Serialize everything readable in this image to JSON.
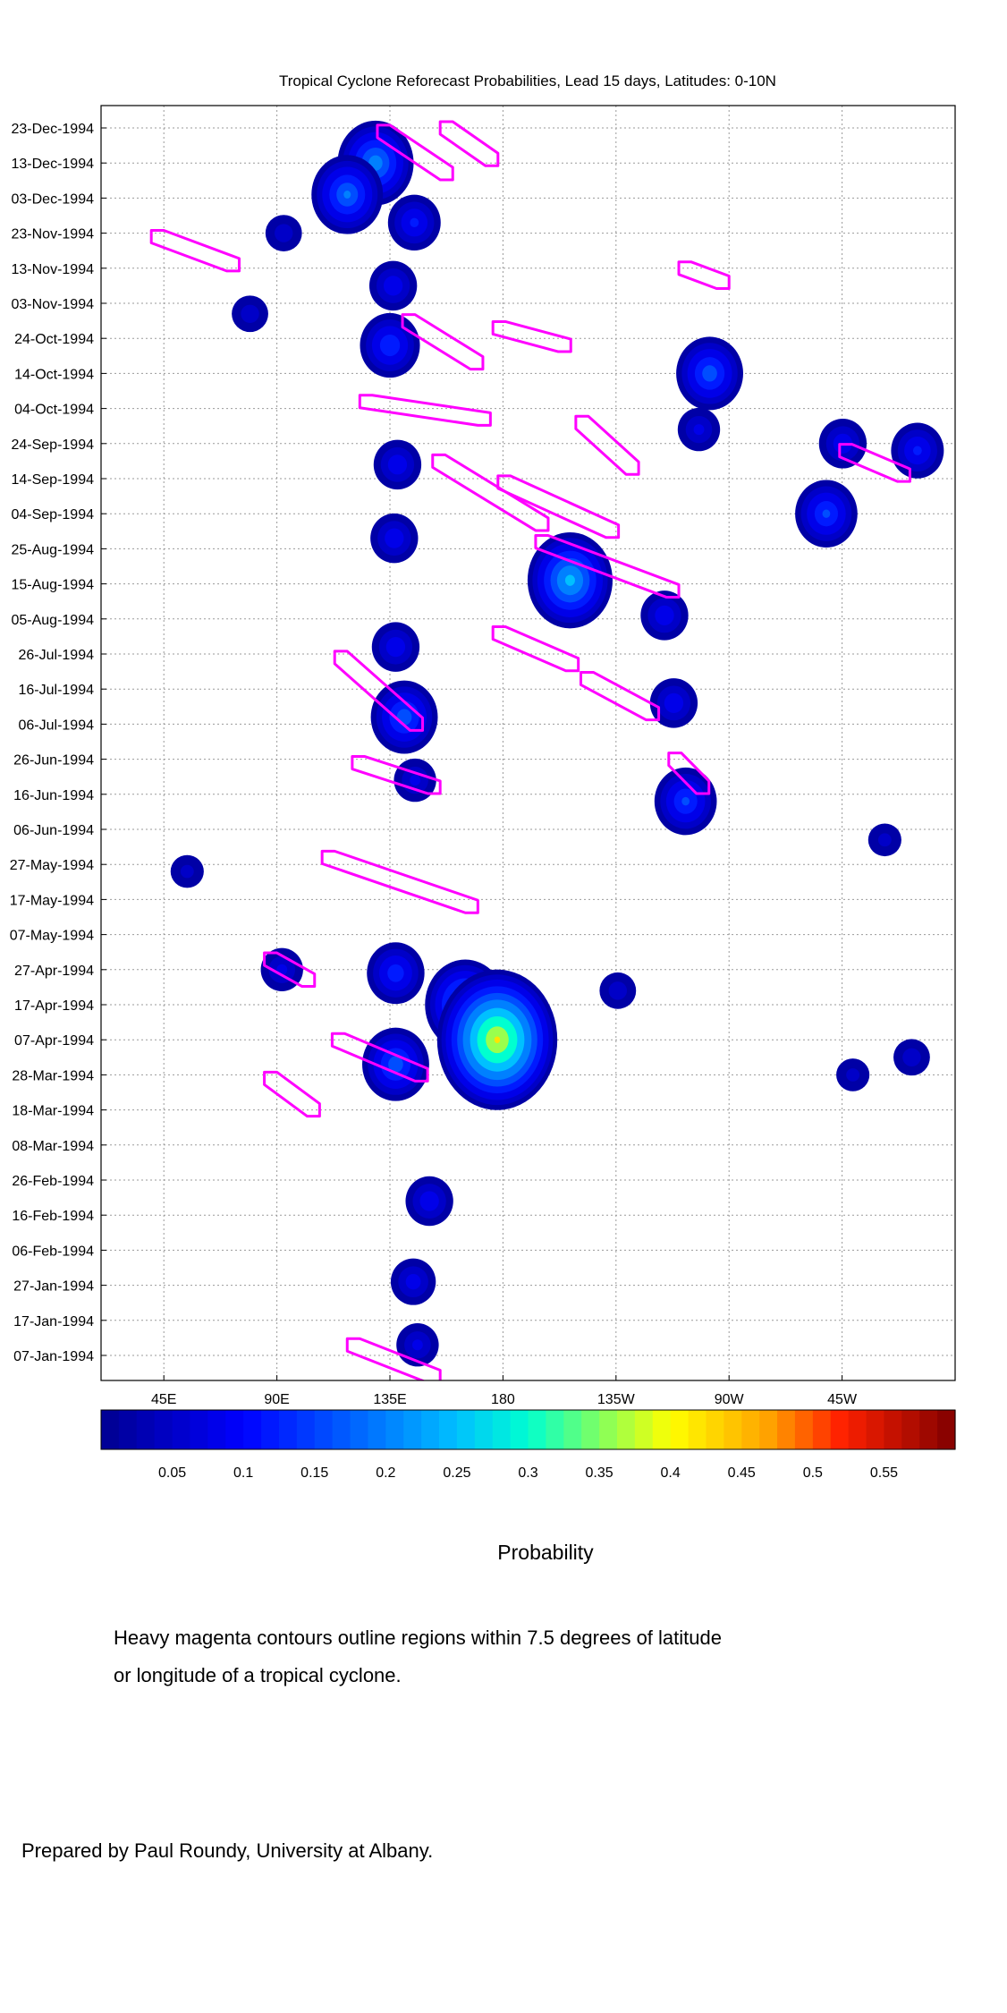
{
  "chart_data": {
    "type": "heatmap",
    "title": "Tropical Cyclone Reforecast Probabilities, Lead 15 days, Latitudes: 0-10N",
    "x_tick_labels": [
      "45E",
      "90E",
      "135E",
      "180",
      "135W",
      "90W",
      "45W"
    ],
    "y_tick_labels": [
      "23-Dec-1994",
      "13-Dec-1994",
      "03-Dec-1994",
      "23-Nov-1994",
      "13-Nov-1994",
      "03-Nov-1994",
      "24-Oct-1994",
      "14-Oct-1994",
      "04-Oct-1994",
      "24-Sep-1994",
      "14-Sep-1994",
      "04-Sep-1994",
      "25-Aug-1994",
      "15-Aug-1994",
      "05-Aug-1994",
      "26-Jul-1994",
      "16-Jul-1994",
      "06-Jul-1994",
      "26-Jun-1994",
      "16-Jun-1994",
      "06-Jun-1994",
      "27-May-1994",
      "17-May-1994",
      "07-May-1994",
      "27-Apr-1994",
      "17-Apr-1994",
      "07-Apr-1994",
      "28-Mar-1994",
      "18-Mar-1994",
      "08-Mar-1994",
      "26-Feb-1994",
      "16-Feb-1994",
      "06-Feb-1994",
      "27-Jan-1994",
      "17-Jan-1994",
      "07-Jan-1994"
    ],
    "colorbar_ticks": [
      "0.05",
      "0.1",
      "0.15",
      "0.2",
      "0.25",
      "0.3",
      "0.35",
      "0.4",
      "0.45",
      "0.5",
      "0.55"
    ],
    "colorbar_range": [
      0,
      0.6
    ],
    "grid": true,
    "contour_color": "#ff00ff",
    "probability_blobs": [
      {
        "lon": 130,
        "date": "1994-12-13",
        "peak": 0.22
      },
      {
        "lon": 118,
        "date": "1994-12-04",
        "peak": 0.2
      },
      {
        "lon": 144,
        "date": "1994-11-26",
        "peak": 0.12
      },
      {
        "lon": 137,
        "date": "1994-11-08",
        "peak": 0.1
      },
      {
        "lon": 135,
        "date": "1994-10-22",
        "peak": 0.15
      },
      {
        "lon": 92,
        "date": "1994-11-23",
        "peak": 0.06
      },
      {
        "lon": 80,
        "date": "1994-10-31",
        "peak": 0.06
      },
      {
        "lon": 138,
        "date": "1994-09-18",
        "peak": 0.1
      },
      {
        "lon": 136,
        "date": "1994-08-28",
        "peak": 0.1
      },
      {
        "lon": 263,
        "date": "1994-10-14",
        "peak": 0.18
      },
      {
        "lon": 258,
        "date": "1994-09-28",
        "peak": 0.08
      },
      {
        "lon": 308,
        "date": "1994-09-04",
        "peak": 0.16
      },
      {
        "lon": 316,
        "date": "1994-09-24",
        "peak": 0.1
      },
      {
        "lon": 345,
        "date": "1994-09-22",
        "peak": 0.12
      },
      {
        "lon": 206,
        "date": "1994-08-16",
        "peak": 0.26
      },
      {
        "lon": 245,
        "date": "1994-08-06",
        "peak": 0.1
      },
      {
        "lon": 248,
        "date": "1994-07-12",
        "peak": 0.1
      },
      {
        "lon": 140,
        "date": "1994-07-08",
        "peak": 0.18
      },
      {
        "lon": 138,
        "date": "1994-07-28",
        "peak": 0.1
      },
      {
        "lon": 145,
        "date": "1994-06-20",
        "peak": 0.08
      },
      {
        "lon": 252,
        "date": "1994-06-14",
        "peak": 0.16
      },
      {
        "lon": 138,
        "date": "1994-04-26",
        "peak": 0.14
      },
      {
        "lon": 165,
        "date": "1994-04-17",
        "peak": 0.24
      },
      {
        "lon": 177,
        "date": "1994-04-07",
        "peak": 0.42
      },
      {
        "lon": 138,
        "date": "1994-03-31",
        "peak": 0.18
      },
      {
        "lon": 92,
        "date": "1994-04-27",
        "peak": 0.08
      },
      {
        "lon": 150,
        "date": "1994-02-20",
        "peak": 0.1
      },
      {
        "lon": 145,
        "date": "1994-01-28",
        "peak": 0.09
      },
      {
        "lon": 146,
        "date": "1994-01-10",
        "peak": 0.08
      },
      {
        "lon": 342,
        "date": "1994-04-02",
        "peak": 0.06
      },
      {
        "lon": 320,
        "date": "1994-03-28",
        "peak": 0.05
      },
      {
        "lon": 332,
        "date": "1994-06-03",
        "peak": 0.05
      },
      {
        "lon": 225,
        "date": "1994-04-21",
        "peak": 0.06
      },
      {
        "lon": 55,
        "date": "1994-05-25",
        "peak": 0.05
      }
    ],
    "tc_contours": [
      {
        "lon": [
          130,
          160
        ],
        "dates": [
          "1994-12-22",
          "1994-12-10"
        ]
      },
      {
        "lon": [
          155,
          178
        ],
        "dates": [
          "1994-12-23",
          "1994-12-14"
        ]
      },
      {
        "lon": [
          40,
          75
        ],
        "dates": [
          "1994-11-22",
          "1994-11-14"
        ]
      },
      {
        "lon": [
          250,
          270
        ],
        "dates": [
          "1994-11-13",
          "1994-11-09"
        ]
      },
      {
        "lon": [
          140,
          172
        ],
        "dates": [
          "1994-10-29",
          "1994-10-17"
        ]
      },
      {
        "lon": [
          176,
          207
        ],
        "dates": [
          "1994-10-27",
          "1994-10-22"
        ]
      },
      {
        "lon": [
          123,
          175
        ],
        "dates": [
          "1994-10-06",
          "1994-10-01"
        ]
      },
      {
        "lon": [
          209,
          234
        ],
        "dates": [
          "1994-09-30",
          "1994-09-17"
        ]
      },
      {
        "lon": [
          152,
          198
        ],
        "dates": [
          "1994-09-19",
          "1994-09-01"
        ]
      },
      {
        "lon": [
          178,
          226
        ],
        "dates": [
          "1994-09-13",
          "1994-08-30"
        ]
      },
      {
        "lon": [
          193,
          250
        ],
        "dates": [
          "1994-08-27",
          "1994-08-13"
        ]
      },
      {
        "lon": [
          176,
          210
        ],
        "dates": [
          "1994-08-01",
          "1994-07-23"
        ]
      },
      {
        "lon": [
          211,
          242
        ],
        "dates": [
          "1994-07-19",
          "1994-07-09"
        ]
      },
      {
        "lon": [
          113,
          148
        ],
        "dates": [
          "1994-07-25",
          "1994-07-06"
        ]
      },
      {
        "lon": [
          120,
          155
        ],
        "dates": [
          "1994-06-25",
          "1994-06-18"
        ]
      },
      {
        "lon": [
          108,
          170
        ],
        "dates": [
          "1994-05-29",
          "1994-05-15"
        ]
      },
      {
        "lon": [
          85,
          105
        ],
        "dates": [
          "1994-04-30",
          "1994-04-24"
        ]
      },
      {
        "lon": [
          112,
          150
        ],
        "dates": [
          "1994-04-07",
          "1994-03-28"
        ]
      },
      {
        "lon": [
          85,
          107
        ],
        "dates": [
          "1994-03-27",
          "1994-03-18"
        ]
      },
      {
        "lon": [
          118,
          155
        ],
        "dates": [
          "1994-01-10",
          "1994-01-01"
        ]
      },
      {
        "lon": [
          314,
          342
        ],
        "dates": [
          "1994-09-22",
          "1994-09-15"
        ]
      },
      {
        "lon": [
          246,
          262
        ],
        "dates": [
          "1994-06-26",
          "1994-06-18"
        ]
      }
    ]
  },
  "colorbar": {
    "label": "Probability"
  },
  "notes": [
    "Heavy magenta contours outline regions within 7.5 degrees of latitude",
    "or longitude of a tropical cyclone."
  ],
  "credit": "Prepared by Paul Roundy, University at Albany."
}
